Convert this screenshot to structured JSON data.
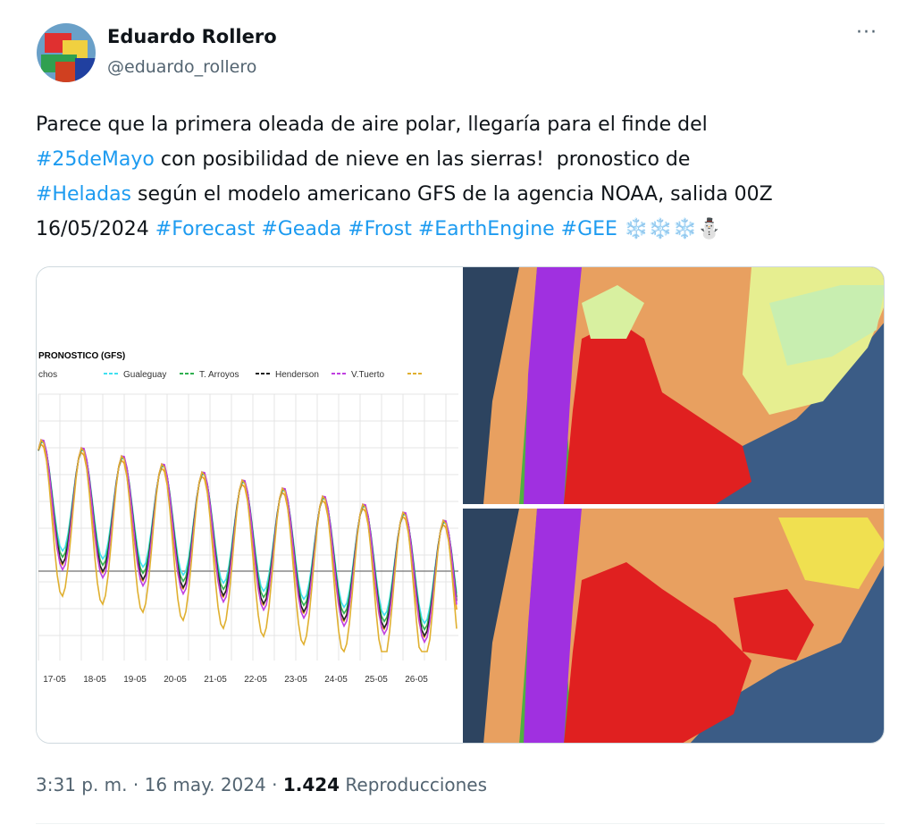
{
  "author": {
    "name": "Eduardo Rollero",
    "handle": "@eduardo_rollero"
  },
  "more": "···",
  "text_lines": [
    [
      {
        "text": "Parece que la primera oleada de aire polar, llegaría para el finde del",
        "hashtag": false
      }
    ],
    [
      {
        "text": "#25deMayo",
        "hashtag": true
      },
      {
        "text": " con posibilidad de nieve en las sierras!  pronostico de",
        "hashtag": false
      }
    ],
    [
      {
        "text": "#Heladas",
        "hashtag": true
      },
      {
        "text": " según el modelo americano GFS de la agencia NOAA, salida 00Z",
        "hashtag": false
      }
    ],
    [
      {
        "text": "16/05/2024 ",
        "hashtag": false
      },
      {
        "text": "#Forecast #Geada #Frost #EarthEngine #GEE",
        "hashtag": true
      },
      {
        "text": " ❄️❄️❄️⛄",
        "hashtag": false
      }
    ]
  ],
  "media_chart": {
    "title": "PRONOSTICO (GFS)",
    "legend": [
      {
        "name": "chos",
        "color": "#f0a020"
      },
      {
        "name": "Gualeguay",
        "color": "#40e0f0"
      },
      {
        "name": "T. Arroyos",
        "color": "#30b050"
      },
      {
        "name": "Henderson",
        "color": "#202020"
      },
      {
        "name": "V.Tuerto",
        "color": "#c040e0"
      },
      {
        "name": "",
        "color": "#e0b030"
      }
    ],
    "categories": [
      "17-05",
      "18-05",
      "19-05",
      "20-05",
      "21-05",
      "22-05",
      "23-05",
      "24-05",
      "25-05",
      "26-05"
    ]
  },
  "meta": {
    "time": "3:31 p. m. · 16 may. 2024 · ",
    "views": "1.424",
    "views_label": " Reproducciones"
  }
}
